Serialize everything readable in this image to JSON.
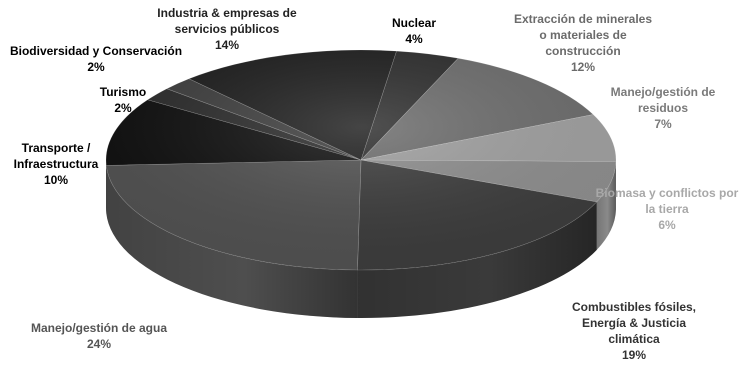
{
  "chart_data": {
    "type": "pie",
    "title": "",
    "slices": [
      {
        "label": "Nuclear",
        "value": 4,
        "value_label": "4%",
        "color": "#2b2b2b"
      },
      {
        "label": "Extracción de minerales o materiales de construcción",
        "value": 12,
        "value_label": "12%",
        "color": "#6a6a6a"
      },
      {
        "label": "Manejo/gestión de residuos",
        "value": 7,
        "value_label": "7%",
        "color": "#9c9c9c"
      },
      {
        "label": "Biomasa y conflictos por la tierra",
        "value": 6,
        "value_label": "6%",
        "color": "#8a8a8a"
      },
      {
        "label": "Combustibles fósiles, Energía & Justicia climática",
        "value": 19,
        "value_label": "19%",
        "color": "#3a3a3a"
      },
      {
        "label": "Manejo/gestión de agua",
        "value": 24,
        "value_label": "24%",
        "color": "#4e4e4e"
      },
      {
        "label": "Transporte / Infraestructura",
        "value": 10,
        "value_label": "10%",
        "color": "#0e0e0e"
      },
      {
        "label": "Turismo",
        "value": 2,
        "value_label": "2%",
        "color": "#2a2a2a"
      },
      {
        "label": "Biodiversidad y Conservación",
        "value": 2,
        "value_label": "2%",
        "color": "#3c3c3c"
      },
      {
        "label": "Industria & empresas de servicios públicos",
        "value": 14,
        "value_label": "14%",
        "color": "#1c1c1c"
      }
    ],
    "label_lines": {
      "Nuclear": [
        "Nuclear"
      ],
      "Extracción de minerales o materiales de construcción": [
        "Extracción de minerales",
        "o materiales de",
        "construcción"
      ],
      "Manejo/gestión de residuos": [
        "Manejo/gestión de",
        "residuos"
      ],
      "Biomasa y conflictos por la tierra": [
        "Biomasa y conflictos por",
        "la tierra"
      ],
      "Combustibles fósiles, Energía & Justicia climática": [
        "Combustibles fósiles,",
        "Energía & Justicia",
        "climática"
      ],
      "Manejo/gestión de agua": [
        "Manejo/gestión de agua"
      ],
      "Transporte / Infraestructura": [
        "Transporte /",
        "Infraestructura"
      ],
      "Turismo": [
        "Turismo"
      ],
      "Biodiversidad y Conservación": [
        "Biodiversidad y Conservación"
      ],
      "Industria & empresas de servicios públicos": [
        "Industria & empresas de",
        "servicios públicos"
      ]
    },
    "style": "3d-pie",
    "legend": "none"
  }
}
